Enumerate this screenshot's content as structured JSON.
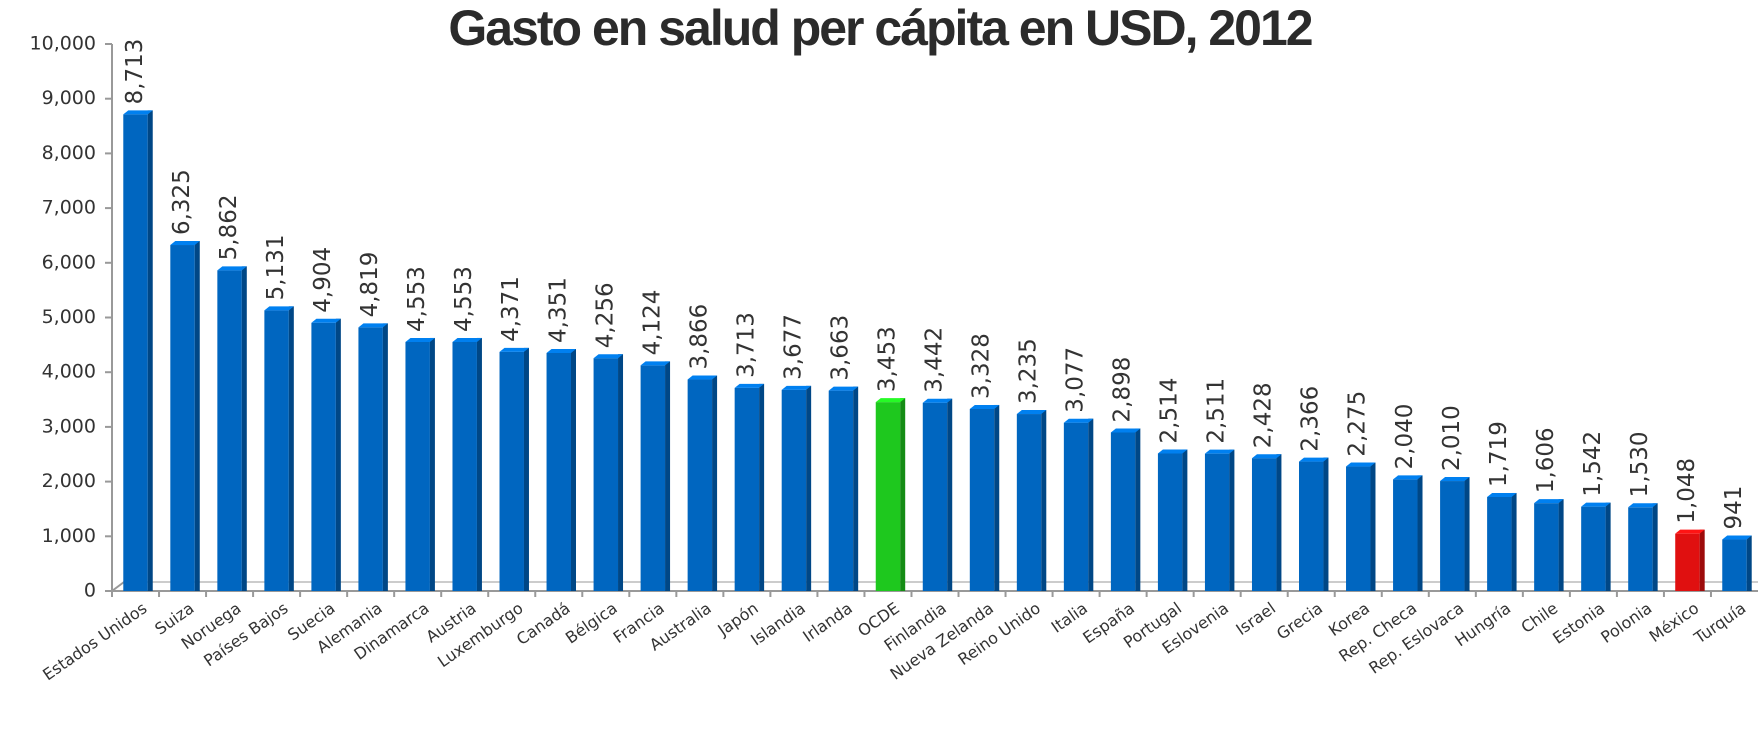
{
  "chart_data": {
    "type": "bar",
    "title": "Gasto en salud per cápita en USD, 2012",
    "categories": [
      "Estados Unidos",
      "Suiza",
      "Noruega",
      "Países Bajos",
      "Suecia",
      "Alemania",
      "Dinamarca",
      "Austria",
      "Luxemburgo",
      "Canadá",
      "Bélgica",
      "Francia",
      "Australia",
      "Japón",
      "Islandia",
      "Irlanda",
      "OCDE",
      "Finlandia",
      "Nueva Zelanda",
      "Reino Unido",
      "Italia",
      "España",
      "Portugal",
      "Eslovenia",
      "Israel",
      "Grecia",
      "Korea",
      "Rep. Checa",
      "Rep. Eslovaca",
      "Hungría",
      "Chile",
      "Estonia",
      "Polonia",
      "México",
      "Turquía"
    ],
    "values": [
      8713,
      6325,
      5862,
      5131,
      4904,
      4819,
      4553,
      4553,
      4371,
      4351,
      4256,
      4124,
      3866,
      3713,
      3677,
      3663,
      3453,
      3442,
      3328,
      3235,
      3077,
      2898,
      2514,
      2511,
      2428,
      2366,
      2275,
      2040,
      2010,
      1719,
      1606,
      1542,
      1530,
      1048,
      941
    ],
    "value_labels": [
      "8,713",
      "6,325",
      "5,862",
      "5,131",
      "4,904",
      "4,819",
      "4,553",
      "4,553",
      "4,371",
      "4,351",
      "4,256",
      "4,124",
      "3,866",
      "3,713",
      "3,677",
      "3,663",
      "3,453",
      "3,442",
      "3,328",
      "3,235",
      "3,077",
      "2,898",
      "2,514",
      "2,511",
      "2,428",
      "2,366",
      "2,275",
      "2,040",
      "2,010",
      "1,719",
      "1,606",
      "1,542",
      "1,530",
      "1,048",
      "941"
    ],
    "colors": [
      "#0066c0",
      "#0066c0",
      "#0066c0",
      "#0066c0",
      "#0066c0",
      "#0066c0",
      "#0066c0",
      "#0066c0",
      "#0066c0",
      "#0066c0",
      "#0066c0",
      "#0066c0",
      "#0066c0",
      "#0066c0",
      "#0066c0",
      "#0066c0",
      "#1ec81e",
      "#0066c0",
      "#0066c0",
      "#0066c0",
      "#0066c0",
      "#0066c0",
      "#0066c0",
      "#0066c0",
      "#0066c0",
      "#0066c0",
      "#0066c0",
      "#0066c0",
      "#0066c0",
      "#0066c0",
      "#0066c0",
      "#0066c0",
      "#0066c0",
      "#e01010",
      "#0066c0"
    ],
    "ylim": [
      0,
      10000
    ],
    "yticks": [
      0,
      {
        "value": 1000,
        "label": "1,000"
      },
      {
        "value": 2000,
        "label": "2,000"
      },
      {
        "value": 3000,
        "label": "3,000"
      },
      {
        "value": 4000,
        "label": "4,000"
      },
      {
        "value": 5000,
        "label": "5,000"
      },
      {
        "value": 6000,
        "label": "6,000"
      },
      {
        "value": 7000,
        "label": "7,000"
      },
      {
        "value": 8000,
        "label": "8,000"
      },
      {
        "value": 9000,
        "label": "9,000"
      },
      {
        "value": 10000,
        "label": "10,000"
      }
    ],
    "grid": false
  }
}
